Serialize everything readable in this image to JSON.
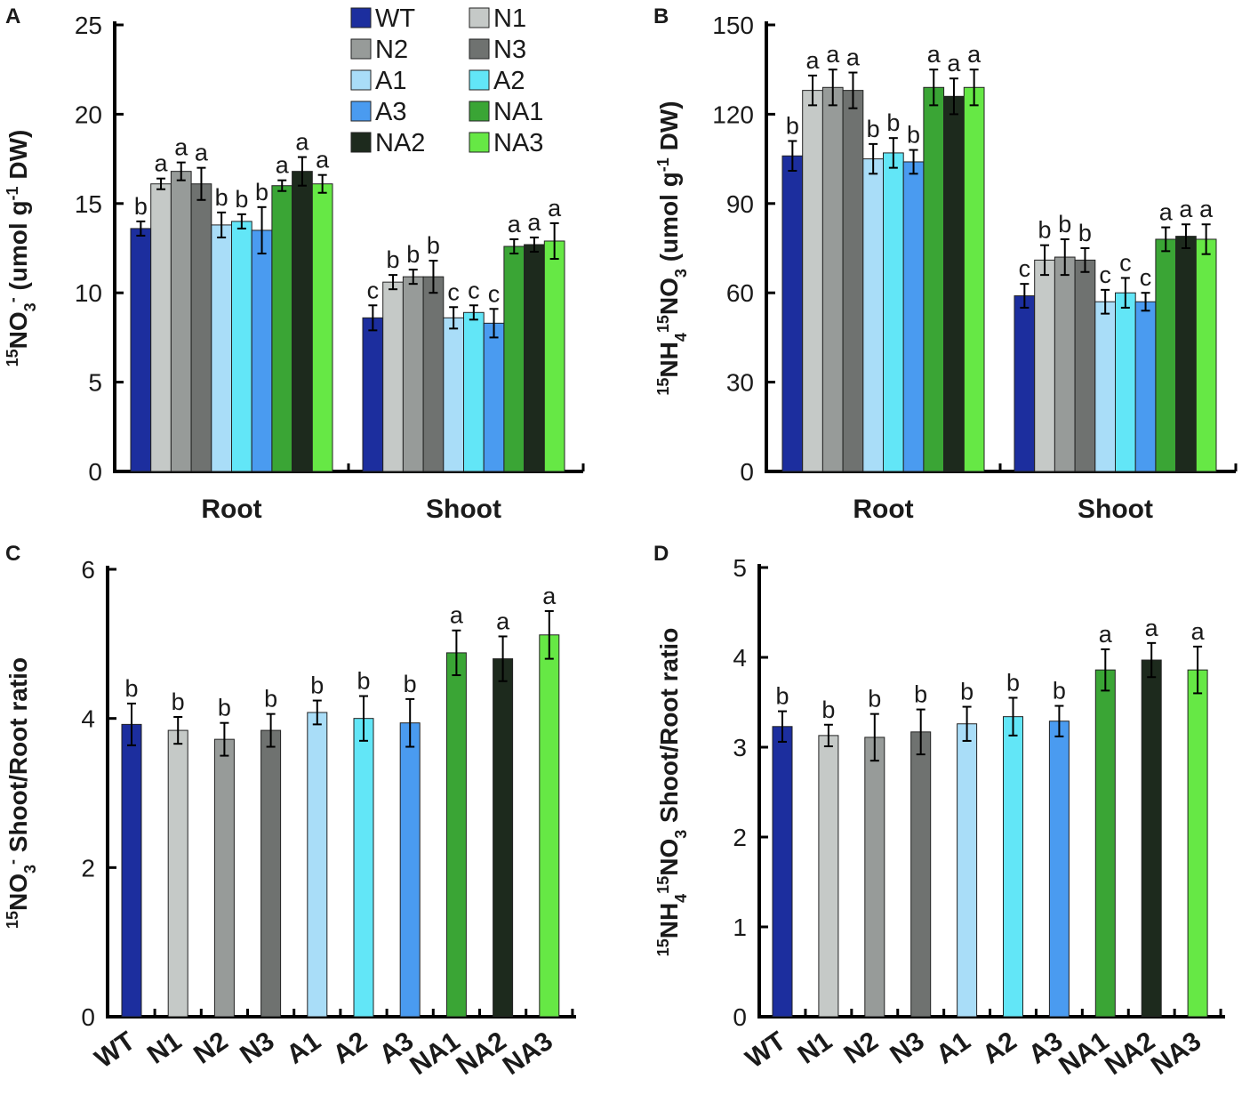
{
  "colors": {
    "WT": "#1c2e9e",
    "N1": "#c5c9c7",
    "N2": "#979b99",
    "N3": "#6f7270",
    "A1": "#a9ddf8",
    "A2": "#62e6f7",
    "A3": "#4a9bf0",
    "NA1": "#3aa535",
    "NA2": "#1d2a1d",
    "NA3": "#66e845"
  },
  "chart_data": [
    {
      "panel": "A",
      "type": "bar",
      "ylabel": "15NO3- (umol g-1 DW)",
      "ylabel_parts": [
        {
          "text": "15",
          "sup": true
        },
        {
          "text": "NO",
          "sup": false
        },
        {
          "text": "3",
          "sub": true
        },
        {
          "text": "-",
          "sup": true
        },
        {
          "text": " (umol g",
          "sup": false
        },
        {
          "text": "-1",
          "sup": true
        },
        {
          "text": " DW)",
          "sup": false
        }
      ],
      "ylim": [
        0,
        25
      ],
      "yticks": [
        "0",
        "5",
        "10",
        "15",
        "20",
        "25"
      ],
      "categories": [
        "Root",
        "Shoot"
      ],
      "series_names": [
        "WT",
        "N1",
        "N2",
        "N3",
        "A1",
        "A2",
        "A3",
        "NA1",
        "NA2",
        "NA3"
      ],
      "values": [
        [
          13.6,
          16.1,
          16.8,
          16.1,
          13.8,
          14.0,
          13.5,
          16.0,
          16.8,
          16.1
        ],
        [
          8.6,
          10.6,
          10.9,
          10.9,
          8.6,
          8.9,
          8.3,
          12.6,
          12.7,
          12.9
        ]
      ],
      "errors": [
        [
          0.4,
          0.3,
          0.5,
          0.9,
          0.7,
          0.4,
          1.3,
          0.3,
          0.8,
          0.5
        ],
        [
          0.7,
          0.4,
          0.4,
          0.9,
          0.6,
          0.4,
          0.8,
          0.4,
          0.4,
          1.0
        ]
      ],
      "labels": [
        [
          "b",
          "a",
          "a",
          "a",
          "b",
          "b",
          "b",
          "a",
          "a",
          "a"
        ],
        [
          "c",
          "b",
          "b",
          "b",
          "c",
          "c",
          "c",
          "a",
          "a",
          "a"
        ]
      ],
      "legend": [
        "WT",
        "N1",
        "N2",
        "N3",
        "A1",
        "A2",
        "A3",
        "NA1",
        "NA2",
        "NA3"
      ]
    },
    {
      "panel": "B",
      "type": "bar",
      "ylabel": "15NH415NO3 (umol g-1 DW)",
      "ylabel_parts": [
        {
          "text": "15",
          "sup": true
        },
        {
          "text": "NH",
          "sup": false
        },
        {
          "text": "4",
          "sub": true
        },
        {
          "text": "15",
          "sup": true
        },
        {
          "text": "NO",
          "sup": false
        },
        {
          "text": "3",
          "sub": true
        },
        {
          "text": " (umol g",
          "sup": false
        },
        {
          "text": "-1",
          "sup": true
        },
        {
          "text": " DW)",
          "sup": false
        }
      ],
      "ylim": [
        0,
        150
      ],
      "yticks": [
        "0",
        "30",
        "60",
        "90",
        "120",
        "150"
      ],
      "categories": [
        "Root",
        "Shoot"
      ],
      "series_names": [
        "WT",
        "N1",
        "N2",
        "N3",
        "A1",
        "A2",
        "A3",
        "NA1",
        "NA2",
        "NA3"
      ],
      "values": [
        [
          106,
          128,
          129,
          128,
          105,
          107,
          104,
          129,
          126,
          129
        ],
        [
          59,
          71,
          72,
          71,
          57,
          60,
          57,
          78,
          79,
          78
        ]
      ],
      "errors": [
        [
          5,
          5,
          6,
          6,
          5,
          5,
          4,
          6,
          6,
          6
        ],
        [
          4,
          5,
          6,
          4,
          4,
          5,
          3,
          4,
          4,
          5
        ]
      ],
      "labels": [
        [
          "b",
          "a",
          "a",
          "a",
          "b",
          "b",
          "b",
          "a",
          "a",
          "a"
        ],
        [
          "c",
          "b",
          "b",
          "b",
          "c",
          "c",
          "c",
          "a",
          "a",
          "a"
        ]
      ]
    },
    {
      "panel": "C",
      "type": "bar",
      "ylabel": "15NO3- Shoot/Root ratio",
      "ylabel_parts": [
        {
          "text": "15",
          "sup": true
        },
        {
          "text": "NO",
          "sup": false
        },
        {
          "text": "3",
          "sub": true
        },
        {
          "text": "-",
          "sup": true
        },
        {
          "text": " Shoot/Root ratio",
          "sup": false
        }
      ],
      "ylim": [
        0,
        6
      ],
      "yticks": [
        "0",
        "2",
        "4",
        "6"
      ],
      "categories": [
        "WT",
        "N1",
        "N2",
        "N3",
        "A1",
        "A2",
        "A3",
        "NA1",
        "NA2",
        "NA3"
      ],
      "values": [
        3.92,
        3.84,
        3.72,
        3.84,
        4.08,
        4.0,
        3.94,
        4.88,
        4.8,
        5.12
      ],
      "errors": [
        0.28,
        0.18,
        0.22,
        0.22,
        0.16,
        0.3,
        0.32,
        0.3,
        0.3,
        0.32
      ],
      "labels": [
        "b",
        "b",
        "b",
        "b",
        "b",
        "b",
        "b",
        "a",
        "a",
        "a"
      ]
    },
    {
      "panel": "D",
      "type": "bar",
      "ylabel": "15NH415NO3 Shoot/Root ratio",
      "ylabel_parts": [
        {
          "text": "15",
          "sup": true
        },
        {
          "text": "NH",
          "sup": false
        },
        {
          "text": "4",
          "sub": true
        },
        {
          "text": "15",
          "sup": true
        },
        {
          "text": "NO",
          "sup": false
        },
        {
          "text": "3",
          "sub": true
        },
        {
          "text": " Shoot/Root ratio",
          "sup": false
        }
      ],
      "ylim": [
        0,
        5
      ],
      "yticks": [
        "0",
        "1",
        "2",
        "3",
        "4",
        "5"
      ],
      "categories": [
        "WT",
        "N1",
        "N2",
        "N3",
        "A1",
        "A2",
        "A3",
        "NA1",
        "NA2",
        "NA3"
      ],
      "values": [
        3.23,
        3.13,
        3.11,
        3.17,
        3.26,
        3.34,
        3.29,
        3.86,
        3.97,
        3.86
      ],
      "errors": [
        0.17,
        0.12,
        0.26,
        0.25,
        0.19,
        0.21,
        0.17,
        0.23,
        0.19,
        0.26
      ],
      "labels": [
        "b",
        "b",
        "b",
        "b",
        "b",
        "b",
        "b",
        "a",
        "a",
        "a"
      ]
    }
  ]
}
